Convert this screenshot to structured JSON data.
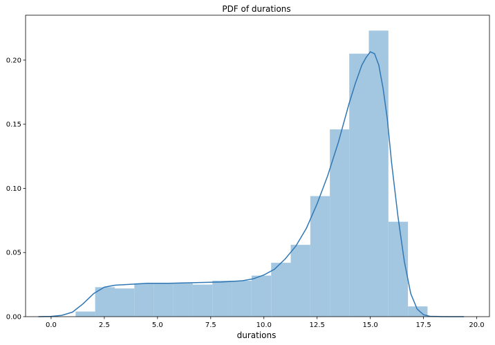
{
  "chart_data": {
    "type": "bar",
    "title": "PDF of durations",
    "xlabel": "durations",
    "ylabel": "",
    "xlim": [
      -1.2,
      20.6
    ],
    "ylim": [
      0,
      0.235
    ],
    "x_ticks": [
      0.0,
      2.5,
      5.0,
      7.5,
      10.0,
      12.5,
      15.0,
      17.5,
      20.0
    ],
    "x_tick_labels": [
      "0.0",
      "2.5",
      "5.0",
      "7.5",
      "10.0",
      "12.5",
      "15.0",
      "17.5",
      "20.0"
    ],
    "y_ticks": [
      0.0,
      0.05,
      0.1,
      0.15,
      0.2
    ],
    "y_tick_labels": [
      "0.00",
      "0.05",
      "0.10",
      "0.15",
      "0.20"
    ],
    "grid": false,
    "histogram": {
      "bin_edges": [
        1.15,
        2.07,
        2.99,
        3.91,
        4.82,
        5.74,
        6.66,
        7.58,
        8.5,
        9.42,
        10.34,
        11.26,
        12.18,
        13.1,
        14.01,
        14.93,
        15.85,
        16.77,
        17.69
      ],
      "values": [
        0.004,
        0.023,
        0.022,
        0.026,
        0.026,
        0.026,
        0.025,
        0.028,
        0.028,
        0.032,
        0.042,
        0.056,
        0.094,
        0.146,
        0.205,
        0.223,
        0.074,
        0.008
      ],
      "color": "#a3c7e1"
    },
    "kde": {
      "x": [
        -0.6,
        0.0,
        0.5,
        1.0,
        1.5,
        2.0,
        2.5,
        3.0,
        3.5,
        4.0,
        4.5,
        5.0,
        5.5,
        6.0,
        6.5,
        7.0,
        7.5,
        8.0,
        8.5,
        9.0,
        9.5,
        10.0,
        10.5,
        11.0,
        11.5,
        12.0,
        12.5,
        13.0,
        13.5,
        14.0,
        14.3,
        14.6,
        14.8,
        15.0,
        15.2,
        15.4,
        15.6,
        15.8,
        16.0,
        16.3,
        16.6,
        16.9,
        17.2,
        17.5,
        17.8,
        18.2,
        18.6,
        19.0,
        19.4
      ],
      "y": [
        0.0,
        0.0002,
        0.001,
        0.0035,
        0.01,
        0.018,
        0.023,
        0.0245,
        0.025,
        0.0255,
        0.026,
        0.026,
        0.026,
        0.0262,
        0.0264,
        0.0266,
        0.0268,
        0.027,
        0.0275,
        0.028,
        0.0295,
        0.0325,
        0.037,
        0.045,
        0.055,
        0.069,
        0.088,
        0.11,
        0.136,
        0.166,
        0.182,
        0.196,
        0.202,
        0.2065,
        0.205,
        0.196,
        0.178,
        0.154,
        0.12,
        0.078,
        0.043,
        0.018,
        0.006,
        0.0015,
        0.0003,
        0.0001,
        0.0,
        0.0,
        0.0
      ],
      "color": "#2f77b4"
    },
    "axis_color": "#000000"
  }
}
